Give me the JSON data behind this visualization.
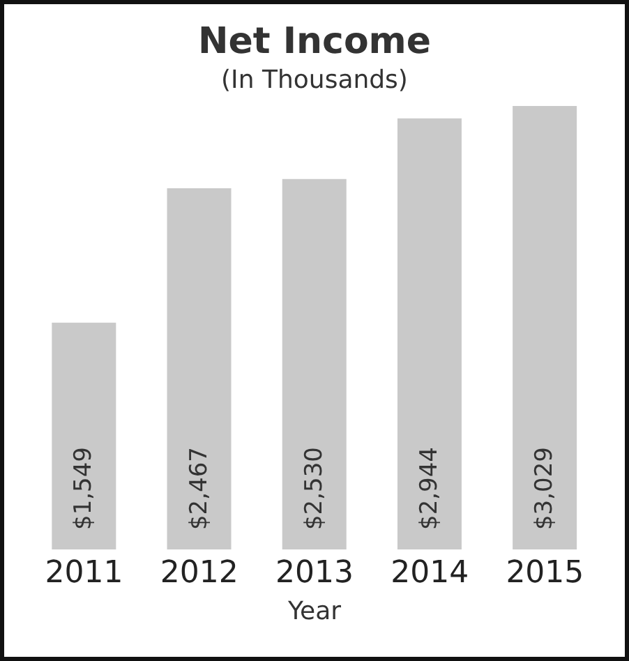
{
  "chart_data": {
    "type": "bar",
    "title": "Net Income",
    "subtitle": "(In Thousands)",
    "xlabel": "Year",
    "categories": [
      "2011",
      "2012",
      "2013",
      "2014",
      "2015"
    ],
    "values": [
      1549,
      2467,
      2530,
      2944,
      3029
    ],
    "value_labels": [
      "$1,549",
      "$2,467",
      "$2,530",
      "$2,944",
      "$3,029"
    ],
    "color": "#c9c9c9"
  }
}
